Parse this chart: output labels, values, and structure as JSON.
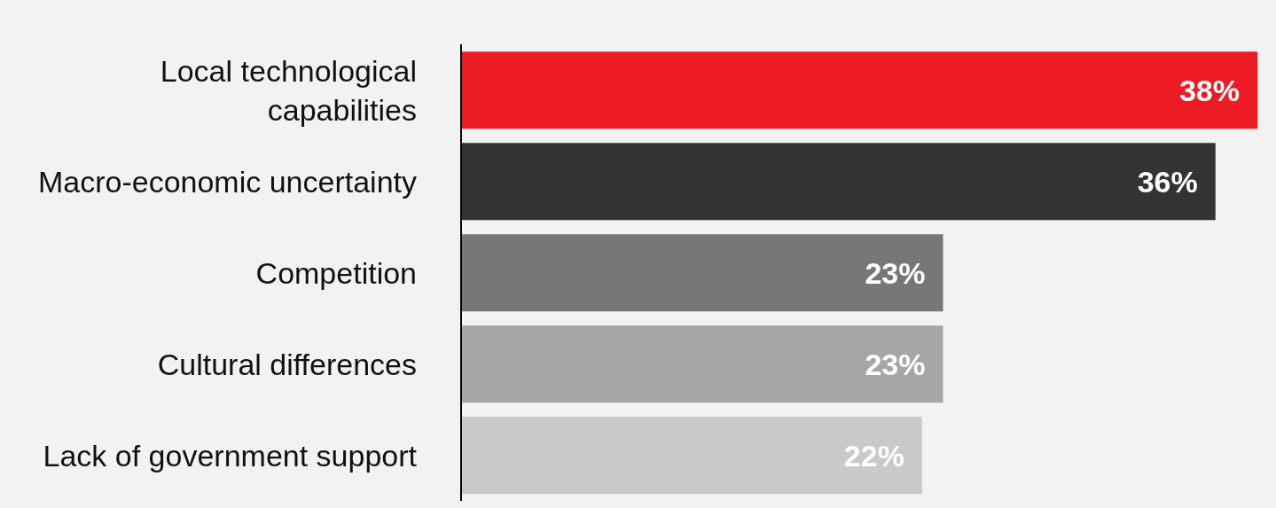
{
  "chart_data": {
    "type": "bar",
    "orientation": "horizontal",
    "categories": [
      "Local technological capabilities",
      "Macro-economic uncertainty",
      "Competition",
      "Cultural differences",
      "Lack of government support"
    ],
    "values": [
      38,
      36,
      23,
      23,
      22
    ],
    "colors": [
      "#ed1c24",
      "#333333",
      "#777777",
      "#a6a6a6",
      "#c8c9ca"
    ],
    "value_labels": [
      "38%",
      "36%",
      "23%",
      "23%",
      "22%"
    ]
  }
}
